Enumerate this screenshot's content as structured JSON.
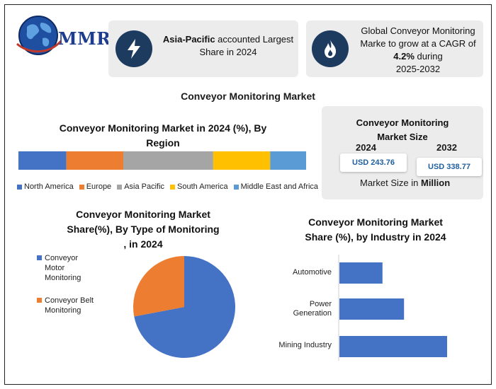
{
  "brand": {
    "logo_text": "MMR"
  },
  "cards": {
    "card1": {
      "bold": "Asia-Pacific",
      "rest": " accounted Largest",
      "line2": "Share in 2024",
      "icon": "lightning-icon"
    },
    "card2": {
      "line1": "Global Conveyor Monitoring",
      "line2": "Marke to grow at a CAGR of",
      "cagr": "4.2%",
      "line3_suffix": " during",
      "line4": "2025-2032",
      "icon": "flame-icon"
    }
  },
  "main_title": "Conveyor Monitoring Market",
  "market_size": {
    "title_line1": "Conveyor Monitoring",
    "title_line2": "Market Size",
    "year_a": "2024",
    "year_b": "2032",
    "value_a": "USD 243.76",
    "value_b": "USD 338.77",
    "note_prefix": "Market Size in ",
    "note_bold": "Million"
  },
  "region": {
    "title_line1": "Conveyor Monitoring Market in 2024 (%), By",
    "title_line2": "Region",
    "legend": [
      "North America",
      "Europe",
      "Asia Pacific",
      "South America",
      "Middle East and Africa"
    ]
  },
  "monitoring": {
    "title_line1": "Conveyor Monitoring Market",
    "title_line2": "Share(%), By Type of Monitoring",
    "title_line3": ", in 2024",
    "legend": [
      {
        "lines": [
          "Conveyor",
          "Motor",
          "Monitoring"
        ]
      },
      {
        "lines": [
          "Conveyor Belt",
          "Monitoring"
        ]
      }
    ]
  },
  "industry": {
    "title_line1": "Conveyor Monitoring Market",
    "title_line2": "Share (%), by  Industry  in 2024",
    "labels": [
      [
        "Automotive"
      ],
      [
        "Power",
        "Generation"
      ],
      [
        "Mining Industry"
      ]
    ]
  },
  "colors": {
    "blue": "#4472c4",
    "orange": "#ed7d31",
    "gray": "#a5a5a5",
    "yellow": "#ffc000",
    "lightblue": "#5b9bd5",
    "navy": "#1d3a5f"
  },
  "chart_data": [
    {
      "type": "bar",
      "orientation": "horizontal-stacked",
      "title": "Conveyor Monitoring Market in 2024 (%), By Region",
      "series": [
        {
          "name": "North America",
          "values": [
            16
          ]
        },
        {
          "name": "Europe",
          "values": [
            19
          ]
        },
        {
          "name": "Asia Pacific",
          "values": [
            30
          ]
        },
        {
          "name": "South America",
          "values": [
            19
          ]
        },
        {
          "name": "Middle East and Africa",
          "values": [
            12
          ]
        }
      ],
      "legend": "bottom"
    },
    {
      "type": "pie",
      "title": "Conveyor Monitoring Market Share(%), By Type of Monitoring , in 2024",
      "labels": [
        "Conveyor Motor Monitoring",
        "Conveyor Belt Monitoring"
      ],
      "values": [
        72,
        28
      ],
      "legend": "left"
    },
    {
      "type": "bar",
      "orientation": "horizontal",
      "title": "Conveyor Monitoring Market Share (%), by  Industry  in 2024",
      "categories": [
        "Automotive",
        "Power Generation",
        "Mining Industry"
      ],
      "values": [
        20,
        30,
        50
      ]
    }
  ]
}
